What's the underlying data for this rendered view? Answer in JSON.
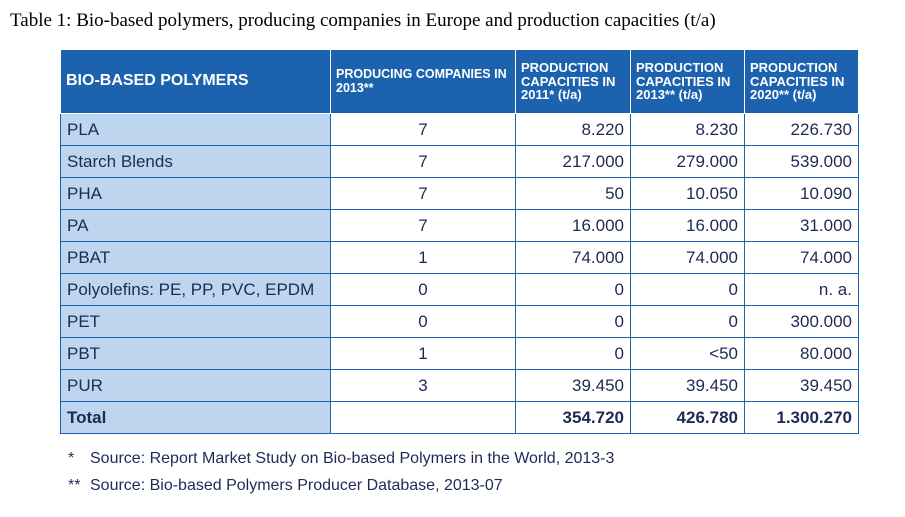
{
  "caption": "Table 1: Bio-based polymers, producing companies in Europe and production capacities (t/a)",
  "headers": {
    "polymers": "BIO-BASED POLYMERS",
    "companies": "PRODUCING COMPANIES IN 2013**",
    "cap2011": "PRODUCTION CAPACITIES IN 2011* (t/a)",
    "cap2013": "PRODUCTION CAPACITIES IN 2013** (t/a)",
    "cap2020": "PRODUCTION CAPACITIES IN 2020** (t/a)"
  },
  "rows": [
    {
      "name": "PLA",
      "companies": "7",
      "cap2011": "8.220",
      "cap2013": "8.230",
      "cap2020": "226.730"
    },
    {
      "name": "Starch Blends",
      "companies": "7",
      "cap2011": "217.000",
      "cap2013": "279.000",
      "cap2020": "539.000"
    },
    {
      "name": "PHA",
      "companies": "7",
      "cap2011": "50",
      "cap2013": "10.050",
      "cap2020": "10.090"
    },
    {
      "name": "PA",
      "companies": "7",
      "cap2011": "16.000",
      "cap2013": "16.000",
      "cap2020": "31.000"
    },
    {
      "name": "PBAT",
      "companies": "1",
      "cap2011": "74.000",
      "cap2013": "74.000",
      "cap2020": "74.000"
    },
    {
      "name": "Polyolefins: PE, PP, PVC, EPDM",
      "companies": "0",
      "cap2011": "0",
      "cap2013": "0",
      "cap2020": "n. a."
    },
    {
      "name": "PET",
      "companies": "0",
      "cap2011": "0",
      "cap2013": "0",
      "cap2020": "300.000"
    },
    {
      "name": "PBT",
      "companies": "1",
      "cap2011": "0",
      "cap2013": "<50",
      "cap2020": "80.000"
    },
    {
      "name": "PUR",
      "companies": "3",
      "cap2011": "39.450",
      "cap2013": "39.450",
      "cap2020": "39.450"
    }
  ],
  "total": {
    "name": "Total",
    "cap2011": "354.720",
    "cap2013": "426.780",
    "cap2020": "1.300.270"
  },
  "footnotes": [
    {
      "mark": "*",
      "text": "Source: Report Market Study on Bio-based Polymers in the World, 2013-3"
    },
    {
      "mark": "**",
      "text": "Source: Bio-based Polymers Producer Database, 2013-07"
    }
  ]
}
